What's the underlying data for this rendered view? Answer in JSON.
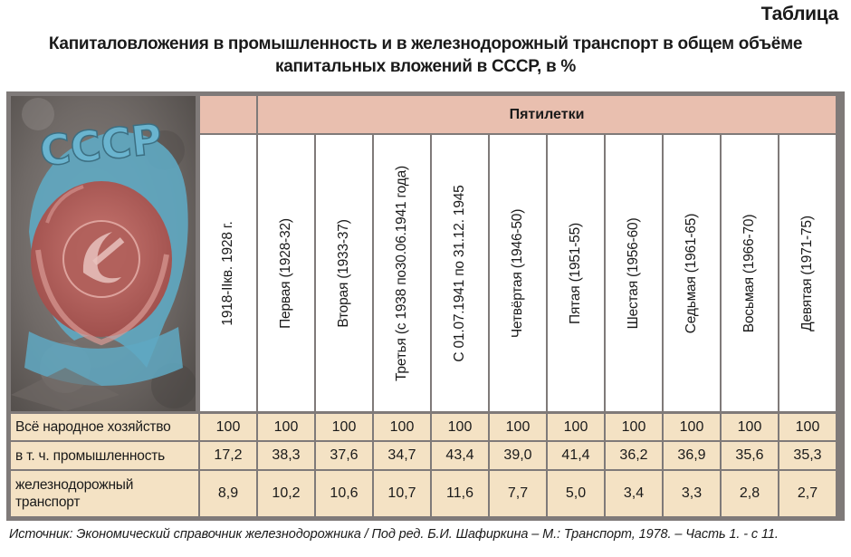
{
  "label": "Таблица",
  "title_line1": "Капиталовложения в промышленность и в железнодорожный транспорт в общем объёме",
  "title_line2": "капитальных вложений в СССР, в %",
  "emblem_text": "СССР",
  "group_header": "Пятилетки",
  "periods": [
    "1918-IIкв. 1928 г.",
    "Первая (1928-32)",
    "Вторая (1933-37)",
    "Третья (с 1938 по30.06.1941 года)",
    "С 01.07.1941 по 31.12. 1945",
    "Четвёртая (1946-50)",
    "Пятая (1951-55)",
    "Шестая (1956-60)",
    "Седьмая (1961-65)",
    "Восьмая (1966-70)",
    "Девятая (1971-75)"
  ],
  "rows": [
    {
      "label": "Всё народное хозяйство",
      "values": [
        "100",
        "100",
        "100",
        "100",
        "100",
        "100",
        "100",
        "100",
        "100",
        "100",
        "100"
      ]
    },
    {
      "label": "в т. ч. промышленность",
      "values": [
        "17,2",
        "38,3",
        "37,6",
        "34,7",
        "43,4",
        "39,0",
        "41,4",
        "36,2",
        "36,9",
        "35,6",
        "35,3"
      ]
    },
    {
      "label": "железнодорожный транспорт",
      "values": [
        "8,9",
        "10,2",
        "10,6",
        "10,7",
        "11,6",
        "7,7",
        "5,0",
        "3,4",
        "3,3",
        "2,8",
        "2,7"
      ]
    }
  ],
  "source": "Источник: Экономический справочник железнодорожника / Под ред. Б.И. Шафиркина – М.: Транспорт, 1978. – Часть 1. - с 11.",
  "colors": {
    "header_pink": "#e9bfaf",
    "data_beige": "#f4e2c4",
    "grid_gray": "#7f7a79",
    "emblem_blue": "#5fa8c2",
    "emblem_red": "#b75a55"
  }
}
